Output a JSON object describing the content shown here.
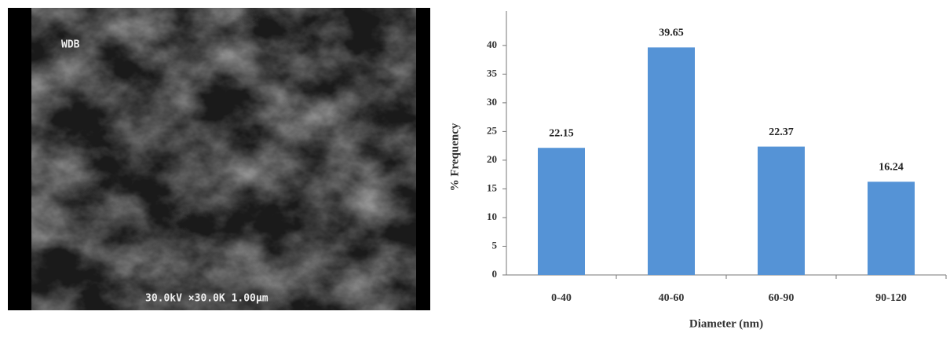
{
  "image_labels": {
    "sample": "WDB",
    "caption": "30.0kV ×30.0K 1.00µm"
  },
  "chart_data": {
    "type": "bar",
    "categories": [
      "0-40",
      "40-60",
      "60-90",
      "90-120"
    ],
    "values": [
      22.15,
      39.65,
      22.37,
      16.24
    ],
    "color": "#5593d6",
    "xlabel": "Diameter (nm)",
    "ylabel": "% Frequency",
    "ylim": [
      0,
      46
    ],
    "yticks": [
      0,
      5,
      10,
      15,
      20,
      25,
      30,
      35,
      40
    ],
    "grid": false,
    "data_labels": true
  }
}
